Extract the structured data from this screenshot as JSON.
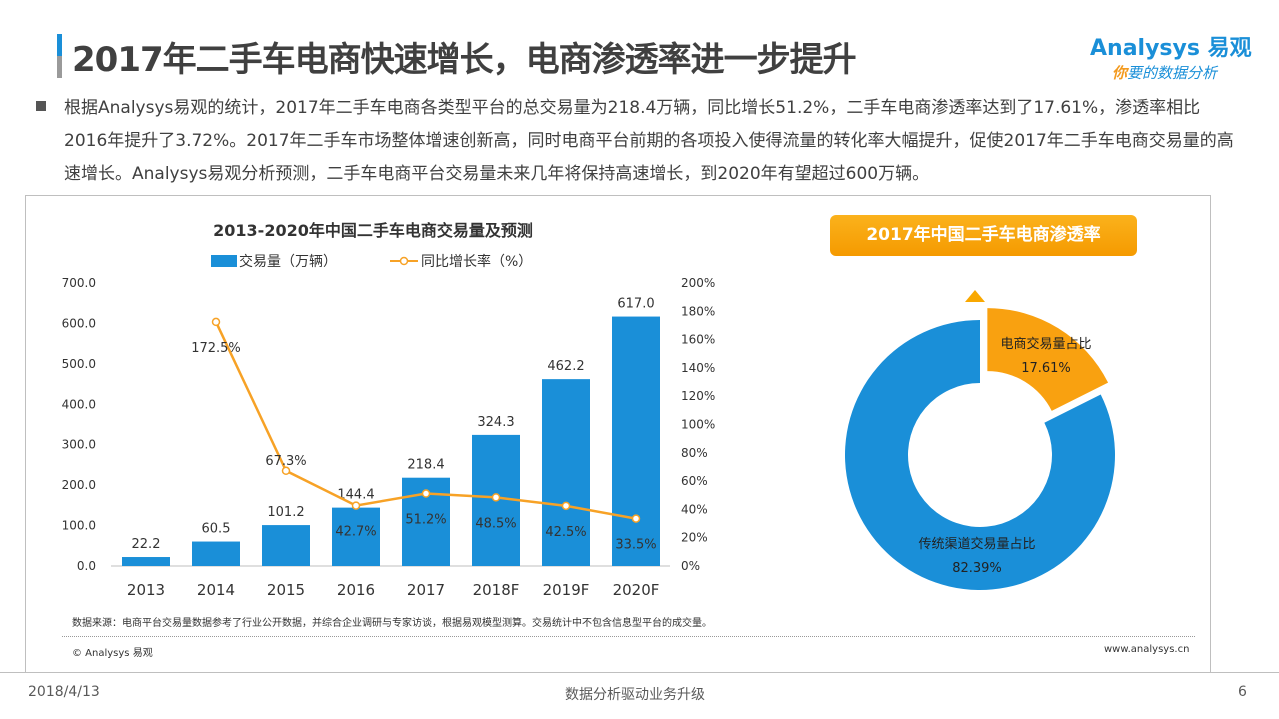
{
  "header": {
    "title": "2017年二手车电商快速增长，电商渗透率进一步提升",
    "logo": "Analysys 易观",
    "slogan_first": "你",
    "slogan_rest": "要的数据分析"
  },
  "summary": "根据Analysys易观的统计，2017年二手车电商各类型平台的总交易量为218.4万辆，同比增长51.2%，二手车电商渗透率达到了17.61%，渗透率相比2016年提升了3.72%。2017年二手车市场整体增速创新高，同时电商平台前期的各项投入使得流量的转化率大幅提升，促使2017年二手车电商交易量的高速增长。Analysys易观分析预测，二手车电商平台交易量未来几年将保持高速增长，到2020年有望超过600万辆。",
  "chart_data": [
    {
      "type": "bar",
      "title": "2013-2020年中国二手车电商交易量及预测",
      "categories": [
        "2013",
        "2014",
        "2015",
        "2016",
        "2017",
        "2018F",
        "2019F",
        "2020F"
      ],
      "series": [
        {
          "name": "交易量（万辆）",
          "type": "bar",
          "axis": "left",
          "color": "#1a8fd8",
          "values": [
            22.2,
            60.5,
            101.2,
            144.4,
            218.4,
            324.3,
            462.2,
            617.0
          ],
          "labels": [
            "22.2",
            "60.5",
            "101.2",
            "144.4",
            "218.4",
            "324.3",
            "462.2",
            "617.0"
          ]
        },
        {
          "name": "同比增长率（%）",
          "type": "line",
          "axis": "right",
          "color": "#f7a226",
          "values": [
            null,
            172.5,
            67.3,
            42.7,
            51.2,
            48.5,
            42.5,
            33.5
          ],
          "labels": [
            "",
            "172.5%",
            "67.3%",
            "42.7%",
            "51.2%",
            "48.5%",
            "42.5%",
            "33.5%"
          ]
        }
      ],
      "ylim": [
        0,
        700
      ],
      "yticks": [
        "0.0",
        "100.0",
        "200.0",
        "300.0",
        "400.0",
        "500.0",
        "600.0",
        "700.0"
      ],
      "y2lim": [
        0,
        200
      ],
      "y2ticks": [
        "0%",
        "20%",
        "40%",
        "60%",
        "80%",
        "100%",
        "120%",
        "140%",
        "160%",
        "180%",
        "200%"
      ],
      "grid": false,
      "legend": "top"
    },
    {
      "type": "pie",
      "title": "2017年中国二手车电商渗透率",
      "donut": true,
      "slices": [
        {
          "label": "电商交易量占比",
          "value": 17.61,
          "text": "17.61%",
          "color": "#f9a110"
        },
        {
          "label": "传统渠道交易量占比",
          "value": 82.39,
          "text": "82.39%",
          "color": "#1a8fd8"
        }
      ]
    }
  ],
  "footer": {
    "source": "数据来源：电商平台交易量数据参考了行业公开数据，并综合企业调研与专家访谈，根据易观模型测算。交易统计中不包含信息型平台的成交量。",
    "copyright": "© Analysys 易观",
    "website": "www.analysys.cn",
    "date": "2018/4/13",
    "tagline": "数据分析驱动业务升级",
    "page": "6"
  }
}
